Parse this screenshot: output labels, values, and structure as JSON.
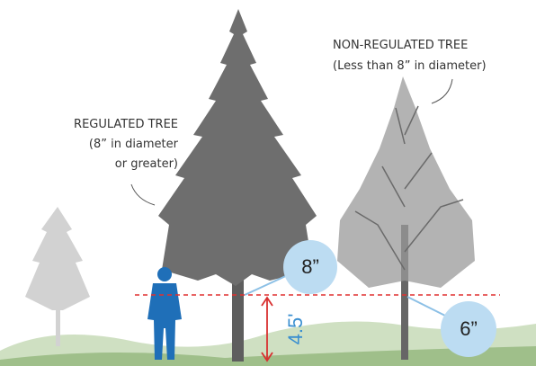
{
  "labels": {
    "regulated": {
      "title": "REGULATED TREE",
      "lines": [
        "(8” in diameter",
        "or greater)"
      ]
    },
    "non_regulated": {
      "title": "NON-REGULATED TREE",
      "subtitle": "(Less than 8” in diameter)"
    }
  },
  "measurements": {
    "regulated_diameter": "8”",
    "non_regulated_diameter": "6”",
    "height": "4.5'"
  }
}
